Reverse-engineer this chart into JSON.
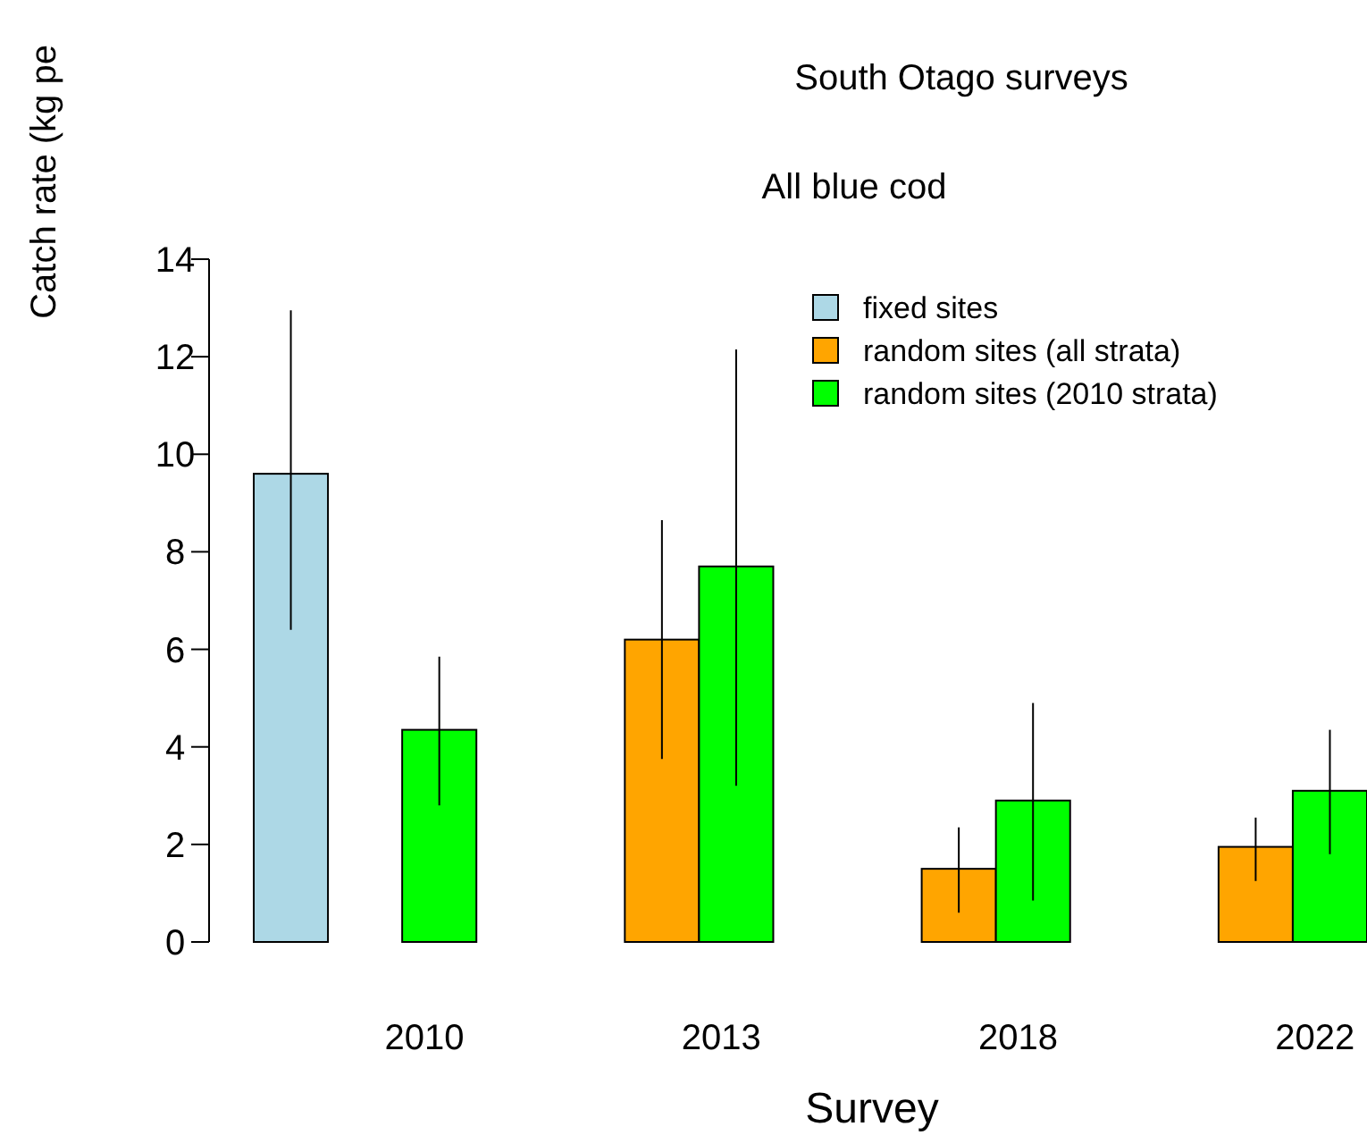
{
  "chart_data": {
    "type": "bar",
    "title": "South Otago surveys",
    "subtitle": "All blue cod",
    "xlabel": "Survey",
    "ylabel": "Catch rate (kg pe",
    "categories": [
      "2010",
      "2013",
      "2018",
      "2022"
    ],
    "series": [
      {
        "name": "fixed sites",
        "color": "#add8e6",
        "values": [
          9.6,
          null,
          null,
          null
        ],
        "errors": [
          [
            6.4,
            12.95
          ],
          null,
          null,
          null
        ]
      },
      {
        "name": "random sites (all strata)",
        "color": "#ffa500",
        "values": [
          null,
          6.2,
          1.5,
          1.95
        ],
        "errors": [
          null,
          [
            3.75,
            8.65
          ],
          [
            0.6,
            2.35
          ],
          [
            1.25,
            2.55
          ]
        ]
      },
      {
        "name": "random sites (2010 strata)",
        "color": "#00ff00",
        "values": [
          4.35,
          7.7,
          2.9,
          3.1
        ],
        "errors": [
          [
            2.8,
            5.85
          ],
          [
            3.2,
            12.15
          ],
          [
            0.85,
            4.9
          ],
          [
            1.8,
            4.35
          ]
        ]
      }
    ],
    "ylim": [
      0,
      14
    ],
    "yticks": [
      0,
      2,
      4,
      6,
      8,
      10,
      12,
      14
    ],
    "grid": false,
    "legend": "top right"
  }
}
